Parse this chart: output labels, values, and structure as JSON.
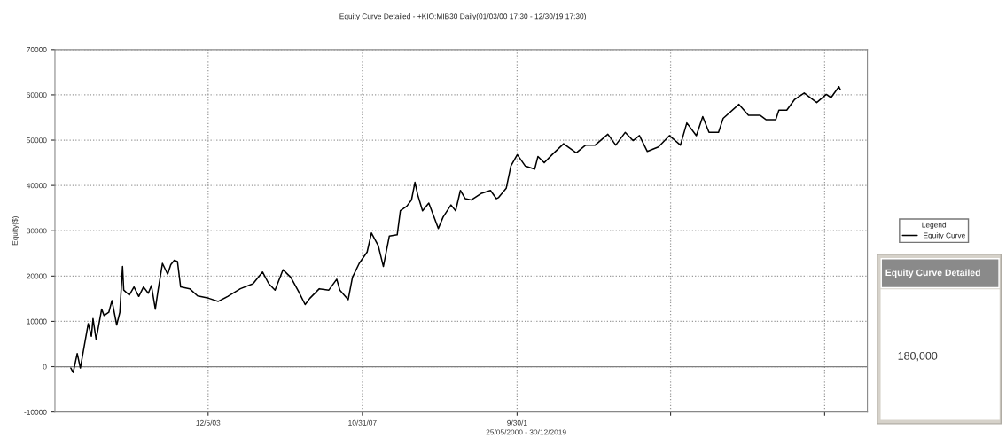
{
  "chart_data": {
    "type": "line",
    "title": "Equity Curve Detailed - +KIO:MIB30 Daily(01/03/00 17:30 - 12/30/19 17:30)",
    "xlabel": "25/05/2000 - 30/12/2019",
    "ylabel": "Equity($)",
    "legend_title": "Legend",
    "series": [
      {
        "name": "Equity Curve",
        "color": "#000000",
        "x": [
          "2000-06-14",
          "2000-07-06",
          "2000-08-12",
          "2000-09-10",
          "2000-10-09",
          "2000-11-22",
          "2000-12-21",
          "2001-01-05",
          "2001-02-03",
          "2001-03-26",
          "2001-04-17",
          "2001-05-31",
          "2001-06-29",
          "2001-08-12",
          "2001-09-10",
          "2001-10-05",
          "2001-10-16",
          "2001-12-06",
          "2002-01-19",
          "2002-03-04",
          "2002-04-17",
          "2002-05-31",
          "2002-06-29",
          "2002-08-04",
          "2002-08-30",
          "2002-10-09",
          "2002-11-26",
          "2002-12-25",
          "2003-01-27",
          "2003-02-25",
          "2003-03-26",
          "2003-06-18",
          "2003-08-30",
          "2003-12-10",
          "2004-03-08",
          "2004-06-03",
          "2004-09-28",
          "2005-01-23",
          "2005-04-21",
          "2005-06-18",
          "2005-08-15",
          "2005-10-27",
          "2006-01-08",
          "2006-03-22",
          "2006-05-20",
          "2006-07-03",
          "2006-09-28",
          "2006-12-25",
          "2007-03-08",
          "2007-04-06",
          "2007-06-22",
          "2007-07-31",
          "2007-10-02",
          "2007-12-14",
          "2008-01-23",
          "2008-03-26",
          "2008-05-12",
          "2008-07-06",
          "2008-09-17",
          "2008-10-16",
          "2008-12-14",
          "2009-01-27",
          "2009-02-28",
          "2009-03-26",
          "2009-05-09",
          "2009-07-06",
          "2009-10-02",
          "2009-11-15",
          "2010-01-27",
          "2010-03-11",
          "2010-04-24",
          "2010-06-07",
          "2010-08-04",
          "2010-10-31",
          "2011-01-27",
          "2011-03-22",
          "2011-04-10",
          "2011-06-22",
          "2011-08-04",
          "2011-10-02",
          "2011-12-14",
          "2012-03-11",
          "2012-04-10",
          "2012-06-07",
          "2012-08-19",
          "2012-12-03",
          "2013-03-30",
          "2013-06-25",
          "2013-09-21",
          "2014-01-16",
          "2014-03-30",
          "2014-06-25",
          "2014-09-06",
          "2014-11-04",
          "2015-01-16",
          "2015-04-28",
          "2015-08-08",
          "2015-11-18",
          "2016-01-16",
          "2016-04-13",
          "2016-06-11",
          "2016-08-08",
          "2016-11-04",
          "2016-12-17",
          "2017-05-12",
          "2017-08-08",
          "2017-11-22",
          "2018-01-19",
          "2018-04-17",
          "2018-05-16",
          "2018-07-28",
          "2018-10-09",
          "2019-01-05",
          "2019-05-01",
          "2019-07-28",
          "2019-09-10",
          "2019-11-22",
          "2019-12-06"
        ],
        "values": [
          -300,
          -1300,
          2900,
          -300,
          3600,
          9500,
          6700,
          10600,
          6000,
          12700,
          11300,
          12000,
          14600,
          9200,
          12000,
          22100,
          16900,
          15800,
          17600,
          15500,
          17600,
          16200,
          17900,
          12700,
          16900,
          22800,
          20400,
          22500,
          23500,
          23200,
          17600,
          17200,
          15600,
          15100,
          14400,
          15500,
          17200,
          18300,
          20900,
          18300,
          16900,
          21400,
          19700,
          16500,
          13700,
          15100,
          17200,
          16900,
          19300,
          16900,
          14800,
          19700,
          22800,
          25300,
          29500,
          26700,
          22100,
          28800,
          29100,
          34400,
          35400,
          36800,
          40700,
          37900,
          34400,
          36100,
          30500,
          33000,
          35700,
          34400,
          38900,
          37100,
          36800,
          38200,
          38900,
          37100,
          37300,
          39400,
          44300,
          46800,
          44300,
          43600,
          46400,
          45000,
          46800,
          49200,
          47200,
          48900,
          48900,
          51300,
          48900,
          51700,
          49900,
          51000,
          47500,
          48500,
          51000,
          48900,
          53800,
          51000,
          55200,
          51700,
          51700,
          54800,
          57900,
          55500,
          55500,
          54500,
          54500,
          56600,
          56600,
          59000,
          60400,
          58300,
          60100,
          59400,
          61800,
          61100
        ]
      }
    ],
    "xlim": [
      "2000-01-19",
      "2020-08-11"
    ],
    "xticks": [
      {
        "value": "2003-12-05",
        "label": "12/5/03"
      },
      {
        "value": "2007-10-31",
        "label": "10/31/07"
      },
      {
        "value": "2011-09-30",
        "label": "9/30/1"
      },
      {
        "value": "2015-08-19",
        "label": null
      },
      {
        "value": "2019-07-13",
        "label": null
      }
    ],
    "ylim": [
      -10000,
      70000
    ],
    "yticks": [
      -10000,
      0,
      10000,
      20000,
      30000,
      40000,
      50000,
      60000,
      70000
    ],
    "ref_lines": [
      {
        "axis": "y",
        "value": 0,
        "label": null,
        "color": "#808080",
        "line_style": "solid"
      }
    ],
    "grid": true,
    "legend": "right",
    "line_style": "solid",
    "marker": "none",
    "annotations": [
      "Equity Curve Detailed",
      "180,000"
    ]
  }
}
